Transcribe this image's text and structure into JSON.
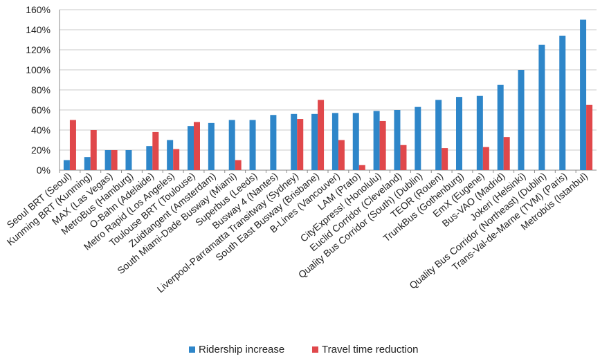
{
  "chart_data": {
    "type": "bar",
    "categories": [
      "Seoul BRT (Seoul)",
      "Kunming BRT (Kunming)",
      "MAX (Las Vegas)",
      "MetroBus (Hamburg)",
      "O-Bahn (Adelaide)",
      "Metro Rapid (Los Angeles)",
      "Toulouse BRT (Toulouse)",
      "Zuidtangent (Amsterdam)",
      "South Miami-Dade Busway (Miami)",
      "Superbus (Leeds)",
      "Busway 4 (Nantes)",
      "Liverpool-Parramatta Transitway (Sydney)",
      "South East Busway (Brisbane)",
      "B-Lines (Vancouver)",
      "LAM (Prato)",
      "CityExpress! (Honolulu)",
      "Euclid Corridor (Cleveland)",
      "Quality Bus Corridor (South) (Dublin)",
      "TEOR (Rouen)",
      "TrunkBus (Gothenburg)",
      "EmX (Eugene)",
      "Bus-VAO (Madrid)",
      "Jokeri (Helsinki)",
      "Quality Bus Corridor (Northeast) (Dublin)",
      "Trans-Val-de-Marne (TVM) (Paris)",
      "Metrobús (Istanbul)"
    ],
    "series": [
      {
        "name": "Ridership increase",
        "color": "#2e86c9",
        "values": [
          10,
          13,
          20,
          20,
          24,
          30,
          44,
          47,
          50,
          50,
          55,
          56,
          56,
          57,
          57,
          59,
          60,
          63,
          70,
          73,
          74,
          85,
          100,
          125,
          134,
          150
        ]
      },
      {
        "name": "Travel time reduction",
        "color": "#e0484b",
        "values": [
          50,
          40,
          20,
          null,
          38,
          21,
          48,
          null,
          10,
          null,
          null,
          51,
          70,
          30,
          5,
          49,
          25,
          null,
          22,
          null,
          23,
          33,
          null,
          null,
          null,
          65
        ]
      }
    ],
    "y_ticks": [
      "0%",
      "20%",
      "40%",
      "60%",
      "80%",
      "100%",
      "120%",
      "140%",
      "160%"
    ],
    "ylim": [
      0,
      160
    ],
    "y_unit": "%",
    "grid": true,
    "legend_position": "bottom",
    "title": "",
    "xlabel": "",
    "ylabel": ""
  }
}
